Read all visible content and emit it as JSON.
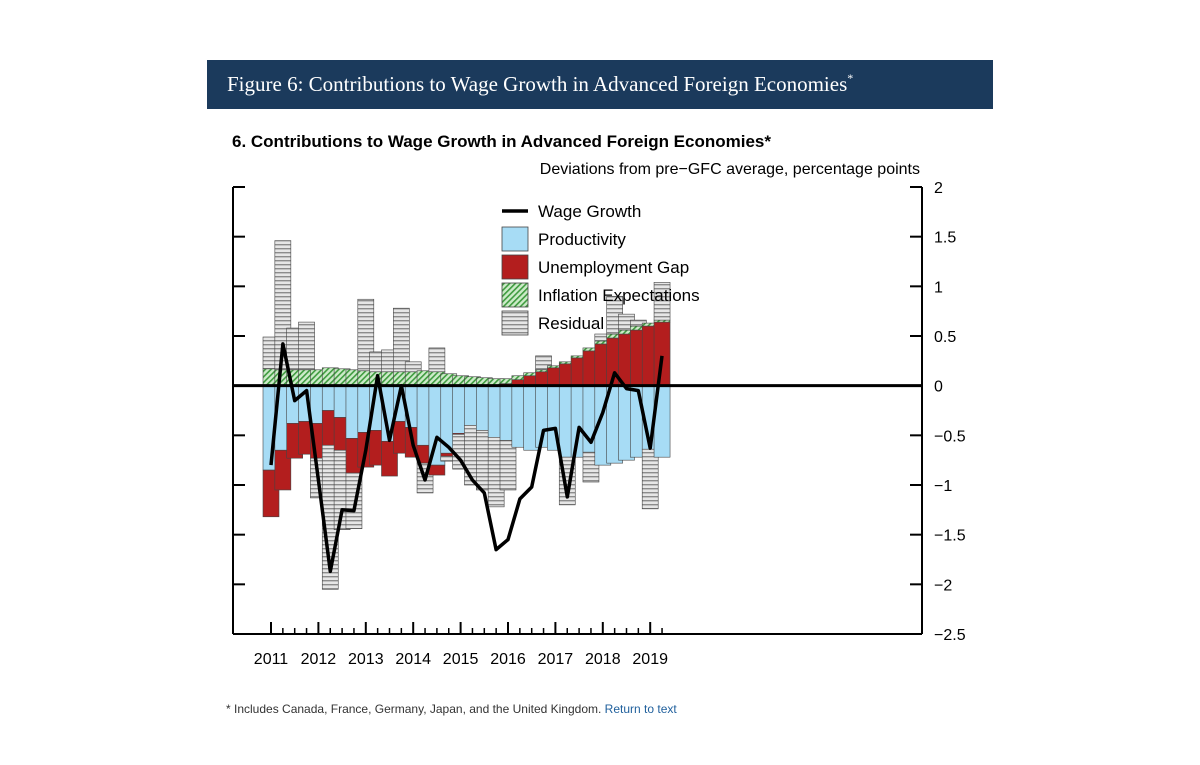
{
  "header": {
    "figure_title": "Figure 6: Contributions to Wage Growth in Advanced Foreign Economies",
    "title_marker": "*"
  },
  "footnote": {
    "text": "* Includes Canada, France, Germany, Japan, and the United Kingdom.",
    "link_label": "Return to text"
  },
  "colors": {
    "header_bg": "#1b3a5c",
    "productivity": "#a7dcf5",
    "unemployment_gap": "#b31e1e",
    "inflation_expectations": "#8fcf8c",
    "residual": "#c8c8c8",
    "wage_growth": "#000000"
  },
  "chart_data": {
    "type": "bar",
    "stacked": true,
    "title": "6. Contributions to Wage Growth in Advanced Foreign Economies*",
    "units": "Deviations from pre−GFC average, percentage points",
    "ylim": [
      -2.5,
      2
    ],
    "yticks": [
      2,
      1.5,
      1,
      0.5,
      0,
      -0.5,
      -1,
      -1.5,
      -2,
      -2.5
    ],
    "ytick_labels": [
      "2",
      "1.5",
      "1",
      "0.5",
      "0",
      "−0.5",
      "−1",
      "−1.5",
      "−2",
      "−2.5"
    ],
    "x_tick_labels": [
      "2011",
      "2012",
      "2013",
      "2014",
      "2015",
      "2016",
      "2017",
      "2018",
      "2019"
    ],
    "legend_position": "top-center",
    "x": [
      "2011Q1",
      "2011Q2",
      "2011Q3",
      "2011Q4",
      "2012Q1",
      "2012Q2",
      "2012Q3",
      "2012Q4",
      "2013Q1",
      "2013Q2",
      "2013Q3",
      "2013Q4",
      "2014Q1",
      "2014Q2",
      "2014Q3",
      "2014Q4",
      "2015Q1",
      "2015Q2",
      "2015Q3",
      "2015Q4",
      "2016Q1",
      "2016Q2",
      "2016Q3",
      "2016Q4",
      "2017Q1",
      "2017Q2",
      "2017Q3",
      "2017Q4",
      "2018Q1",
      "2018Q2",
      "2018Q3",
      "2018Q4",
      "2019Q1",
      "2019Q2"
    ],
    "series": [
      {
        "name": "Wage Growth",
        "kind": "line",
        "values": [
          -0.8,
          0.42,
          -0.15,
          -0.05,
          -0.95,
          -1.87,
          -1.25,
          -1.26,
          -0.65,
          0.1,
          -0.55,
          0.0,
          -0.6,
          -0.95,
          -0.52,
          -0.62,
          -0.75,
          -0.95,
          -1.08,
          -1.65,
          -1.55,
          -1.14,
          -1.02,
          -0.45,
          -0.43,
          -1.12,
          -0.42,
          -0.57,
          -0.27,
          0.13,
          -0.03,
          -0.05,
          -0.63,
          0.3
        ]
      },
      {
        "name": "Productivity",
        "kind": "bar",
        "values": [
          -0.85,
          -0.65,
          -0.38,
          -0.36,
          -0.38,
          -0.25,
          -0.32,
          -0.53,
          -0.47,
          -0.45,
          -0.56,
          -0.36,
          -0.42,
          -0.6,
          -0.8,
          -0.68,
          -0.48,
          -0.4,
          -0.45,
          -0.52,
          -0.55,
          -0.62,
          -0.65,
          -0.62,
          -0.65,
          -0.72,
          -0.72,
          -0.67,
          -0.8,
          -0.78,
          -0.75,
          -0.72,
          -0.64,
          -0.72
        ]
      },
      {
        "name": "Unemployment Gap",
        "kind": "bar",
        "values": [
          -0.47,
          -0.4,
          -0.35,
          -0.33,
          -0.35,
          -0.35,
          -0.33,
          -0.35,
          -0.35,
          -0.35,
          -0.35,
          -0.32,
          -0.3,
          -0.18,
          -0.1,
          -0.03,
          -0.01,
          0.0,
          0.0,
          0.0,
          0.02,
          0.06,
          0.1,
          0.14,
          0.18,
          0.22,
          0.28,
          0.35,
          0.42,
          0.48,
          0.52,
          0.56,
          0.6,
          0.64
        ]
      },
      {
        "name": "Inflation Expectations",
        "kind": "bar",
        "values": [
          0.17,
          0.16,
          0.16,
          0.16,
          0.16,
          0.18,
          0.17,
          0.16,
          0.15,
          0.14,
          0.14,
          0.14,
          0.14,
          0.15,
          0.14,
          0.12,
          0.1,
          0.09,
          0.08,
          0.07,
          0.05,
          0.04,
          0.03,
          0.02,
          0.02,
          0.02,
          0.02,
          0.03,
          0.03,
          0.04,
          0.04,
          0.04,
          0.03,
          0.02
        ]
      },
      {
        "name": "Residual",
        "kind": "bar",
        "values": [
          0.32,
          1.3,
          0.42,
          0.48,
          -0.4,
          -1.45,
          -0.8,
          -0.56,
          0.72,
          0.2,
          0.22,
          0.64,
          0.1,
          -0.3,
          0.24,
          -0.05,
          -0.35,
          -0.6,
          -0.6,
          -0.7,
          -0.5,
          0.0,
          0.0,
          0.14,
          0.0,
          -0.48,
          0.0,
          -0.3,
          0.07,
          0.38,
          0.16,
          0.06,
          -0.6,
          0.38
        ]
      }
    ]
  }
}
